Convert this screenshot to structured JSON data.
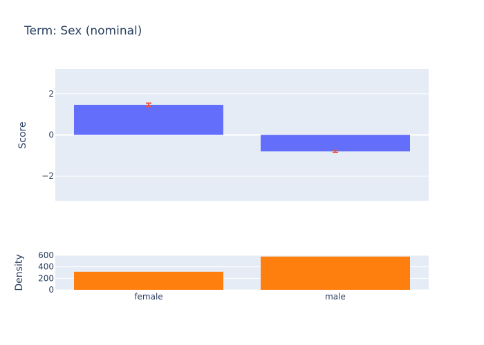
{
  "colors": {
    "background": "#ffffff",
    "plot_background": "#e5ecf6",
    "grid": "#ffffff",
    "text": "#2a3f5f",
    "score_bar": "#636efa",
    "error_bar": "#ef553b",
    "density_bar": "#ff7f0e"
  },
  "chart_data": {
    "type": "bar",
    "title": "Term: Sex (nominal)",
    "categories": [
      "female",
      "male"
    ],
    "grid": true,
    "panels": [
      {
        "name": "score",
        "ylabel": "Score",
        "ylim": [
          -3.2,
          3.2
        ],
        "yticks": [
          -2,
          0,
          2
        ],
        "ytick_labels": [
          "−2",
          "0",
          "2"
        ],
        "values": [
          1.46,
          -0.8
        ],
        "error_values": [
          1.46,
          -0.8
        ],
        "error": [
          0.08,
          0.05
        ]
      },
      {
        "name": "density",
        "ylabel": "Density",
        "ylim": [
          0,
          600
        ],
        "yticks": [
          0,
          200,
          400,
          600
        ],
        "ytick_labels": [
          "0",
          "200",
          "400",
          "600"
        ],
        "values": [
          314,
          578
        ]
      }
    ]
  }
}
